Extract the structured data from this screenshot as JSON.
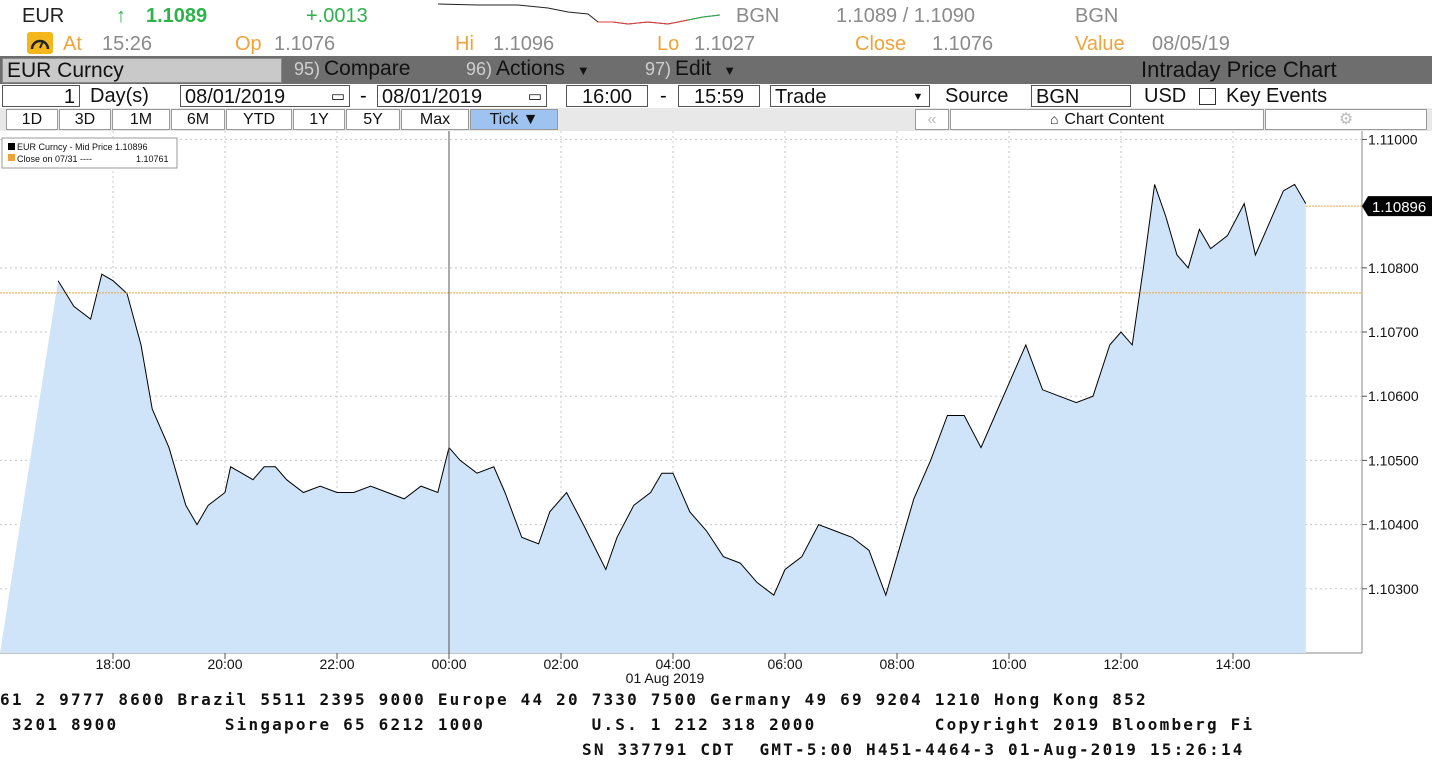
{
  "quote": {
    "ticker": "EUR",
    "arrow": "↑",
    "last": "1.1089",
    "change": "+.0013",
    "source1": "BGN",
    "bid_ask": "1.1089 / 1.1090",
    "source2": "BGN"
  },
  "stats": {
    "at_label": "At",
    "at_value": "15:26",
    "op_label": "Op",
    "op_value": "1.1076",
    "hi_label": "Hi",
    "hi_value": "1.1096",
    "lo_label": "Lo",
    "lo_value": "1.1027",
    "close_label": "Close",
    "close_value": "1.1076",
    "value_label": "Value",
    "value_value": "08/05/19"
  },
  "toolbar": {
    "security": "EUR Curncy",
    "compare_num": "95)",
    "compare_label": "Compare",
    "actions_num": "96)",
    "actions_label": "Actions",
    "edit_num": "97)",
    "edit_label": "Edit",
    "title": "Intraday Price Chart"
  },
  "settings": {
    "period_count": "1",
    "period_unit": "Day(s)",
    "start_date": "08/01/2019",
    "end_date": "08/01/2019",
    "dash": "-",
    "start_time": "16:00",
    "end_time": "15:59",
    "field": "Trade",
    "source_label": "Source",
    "source_value": "BGN",
    "currency": "USD",
    "key_events": "Key Events"
  },
  "ranges": [
    "1D",
    "3D",
    "1M",
    "6M",
    "YTD",
    "1Y",
    "5Y",
    "Max",
    "Tick ▼"
  ],
  "chart_content_label": "Chart Content",
  "legend": {
    "row1": "EUR Curncy - Mid Price 1.10896",
    "row2_label": "Close on 07/31 ----",
    "row2_value": "1.10761",
    "series_color": "#000000",
    "close_color": "#f0a33c"
  },
  "chart_data": {
    "type": "line",
    "title": "",
    "xlabel": "",
    "ylabel": "",
    "x_ticks": [
      "18:00",
      "20:00",
      "22:00",
      "00:00",
      "02:00",
      "04:00",
      "06:00",
      "08:00",
      "10:00",
      "12:00",
      "14:00"
    ],
    "x_date_label": "01 Aug 2019",
    "y_ticks": [
      "1.11000",
      "1.10800",
      "1.10700",
      "1.10600",
      "1.10500",
      "1.10400",
      "1.10300"
    ],
    "ylim": [
      1.102,
      1.1101
    ],
    "last_price_label": "1.10896",
    "prev_close_value": 1.10761,
    "fill_color": "#cfe4f9",
    "line_color": "#000000",
    "series": [
      {
        "name": "EUR Curncy - Mid Price",
        "x_hours": [
          -6.98,
          -6.7,
          -6.4,
          -6.2,
          -6.0,
          -5.75,
          -5.5,
          -5.3,
          -5.0,
          -4.7,
          -4.5,
          -4.3,
          -4.0,
          -3.9,
          -3.7,
          -3.5,
          -3.3,
          -3.1,
          -2.9,
          -2.6,
          -2.3,
          -2.0,
          -1.7,
          -1.4,
          -1.1,
          -0.8,
          -0.5,
          -0.2,
          0.0,
          0.2,
          0.5,
          0.8,
          1.0,
          1.3,
          1.6,
          1.8,
          2.1,
          2.4,
          2.8,
          3.0,
          3.3,
          3.6,
          3.8,
          4.0,
          4.3,
          4.6,
          4.9,
          5.2,
          5.5,
          5.8,
          6.0,
          6.3,
          6.6,
          6.9,
          7.2,
          7.5,
          7.8,
          8.0,
          8.3,
          8.6,
          8.9,
          9.2,
          9.5,
          9.8,
          10.0,
          10.3,
          10.6,
          10.9,
          11.2,
          11.5,
          11.8,
          12.0,
          12.2,
          12.4,
          12.6,
          12.8,
          13.0,
          13.2,
          13.4,
          13.6,
          13.9,
          14.2,
          14.4,
          14.6,
          14.9,
          15.1,
          15.3
        ],
        "values": [
          1.1078,
          1.1074,
          1.1072,
          1.1079,
          1.1078,
          1.1076,
          1.1068,
          1.1058,
          1.1052,
          1.1043,
          1.104,
          1.1043,
          1.1045,
          1.1049,
          1.1048,
          1.1047,
          1.1049,
          1.1049,
          1.1047,
          1.1045,
          1.1046,
          1.1045,
          1.1045,
          1.1046,
          1.1045,
          1.1044,
          1.1046,
          1.1045,
          1.1052,
          1.105,
          1.1048,
          1.1049,
          1.1045,
          1.1038,
          1.1037,
          1.1042,
          1.1045,
          1.104,
          1.1033,
          1.1038,
          1.1043,
          1.1045,
          1.1048,
          1.1048,
          1.1042,
          1.1039,
          1.1035,
          1.1034,
          1.1031,
          1.1029,
          1.1033,
          1.1035,
          1.104,
          1.1039,
          1.1038,
          1.1036,
          1.1029,
          1.1035,
          1.1044,
          1.105,
          1.1057,
          1.1057,
          1.1052,
          1.1058,
          1.1062,
          1.1068,
          1.1061,
          1.106,
          1.1059,
          1.106,
          1.1068,
          1.107,
          1.1068,
          1.108,
          1.1093,
          1.1088,
          1.1082,
          1.108,
          1.1086,
          1.1083,
          1.1085,
          1.109,
          1.1082,
          1.1086,
          1.1092,
          1.1093,
          1.109
        ]
      }
    ]
  },
  "footer": {
    "line1": "61 2 9777 8600 Brazil 5511 2395 9000 Europe 44 20 7330 7500 Germany 49 69 9204 1210 Hong Kong 852",
    "line2": " 3201 8900         Singapore 65 6212 1000         U.S. 1 212 318 2000          Copyright 2019 Bloomberg Fi",
    "line3": "SN 337791 CDT  GMT-5:00 H451-4464-3 01-Aug-2019 15:26:14"
  }
}
